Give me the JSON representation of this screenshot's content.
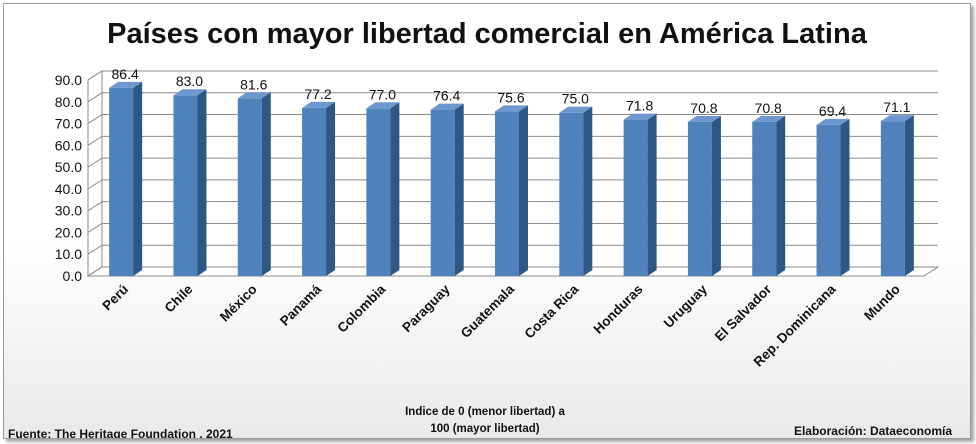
{
  "chart_data": {
    "type": "bar",
    "title": "Países con mayor libertad comercial en América Latina",
    "categories": [
      "Perú",
      "Chile",
      "México",
      "Panamá",
      "Colombia",
      "Paraguay",
      "Guatemala",
      "Costa Rica",
      "Honduras",
      "Uruguay",
      "El Salvador",
      "Rep. Dominicana",
      "Mundo"
    ],
    "values": [
      86.4,
      83.0,
      81.6,
      77.2,
      77.0,
      76.4,
      75.6,
      75.0,
      71.8,
      70.8,
      70.8,
      69.4,
      71.1
    ],
    "value_labels": [
      "86.4",
      "83.0",
      "81.6",
      "77.2",
      "77.0",
      "76.4",
      "75.6",
      "75.0",
      "71.8",
      "70.8",
      "70.8",
      "69.4",
      "71.1"
    ],
    "ylim": [
      0,
      90
    ],
    "yticks": [
      "0.0",
      "10.0",
      "20.0",
      "30.0",
      "40.0",
      "50.0",
      "60.0",
      "70.0",
      "80.0",
      "90.0"
    ],
    "grid": true,
    "bar_color": "#4f81bd",
    "xlabel_line1": "Indice de 0 (menor libertad) a",
    "xlabel_line2": "100  (mayor libertad)"
  },
  "footer": {
    "source": "Fuente: The Heritage Foundation , 2021",
    "credit": "Elaboración: Dataeconomía"
  }
}
